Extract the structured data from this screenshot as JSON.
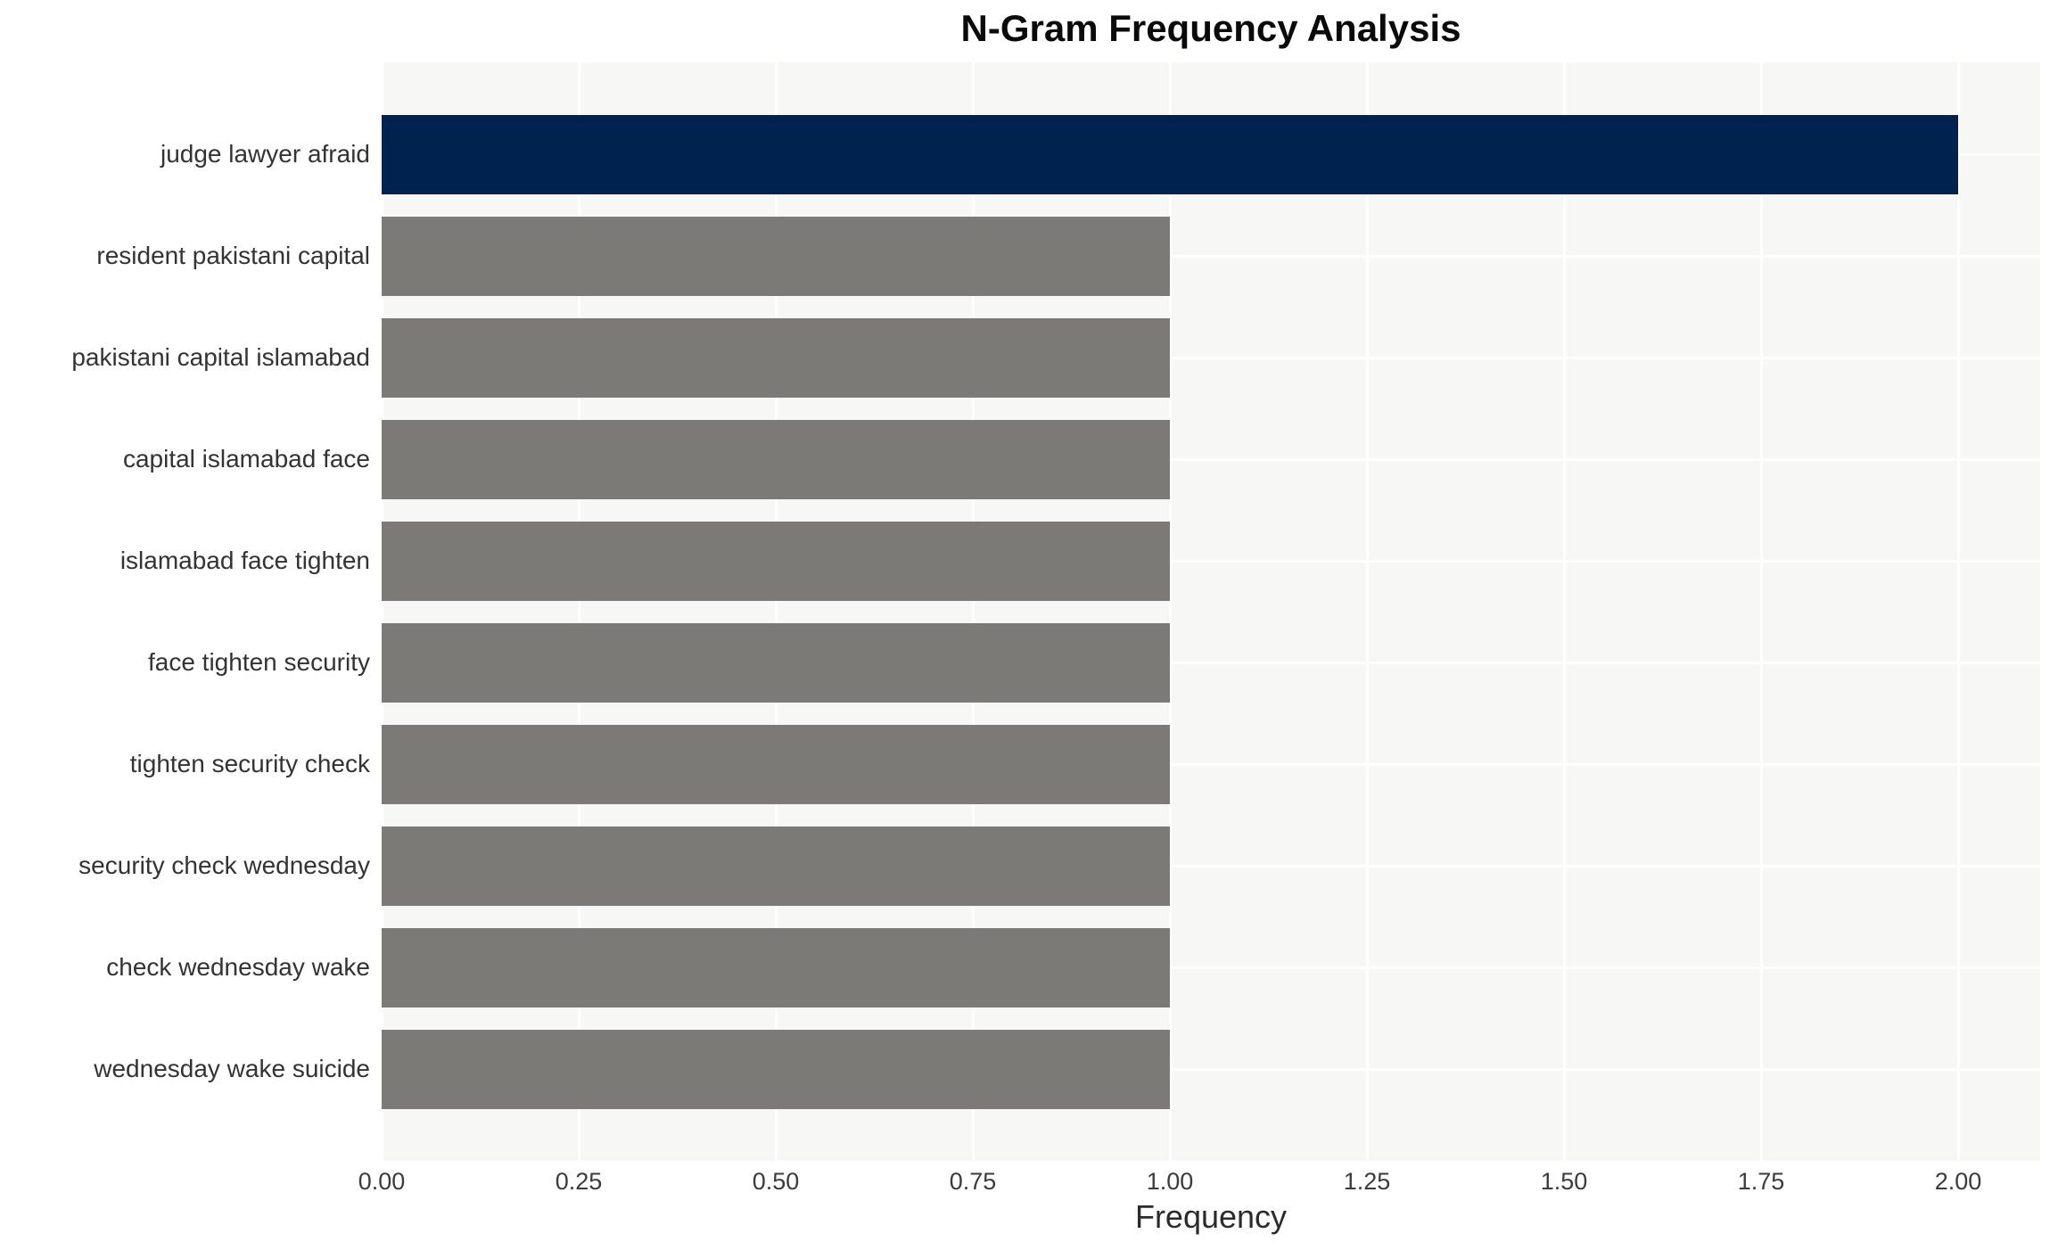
{
  "chart_data": {
    "type": "bar",
    "orientation": "horizontal",
    "title": "N-Gram Frequency Analysis",
    "xlabel": "Frequency",
    "ylabel": "",
    "categories": [
      "judge lawyer afraid",
      "resident pakistani capital",
      "pakistani capital islamabad",
      "capital islamabad face",
      "islamabad face tighten",
      "face tighten security",
      "tighten security check",
      "security check wednesday",
      "check wednesday wake",
      "wednesday wake suicide"
    ],
    "values": [
      2,
      1,
      1,
      1,
      1,
      1,
      1,
      1,
      1,
      1
    ],
    "bar_colors": [
      "#00224e",
      "#7b7a76",
      "#7b7a76",
      "#7b7a76",
      "#7b7a76",
      "#7b7a76",
      "#7b7a76",
      "#7b7a76",
      "#7b7a76",
      "#7b7a76"
    ],
    "xlim": [
      0,
      2.104
    ],
    "xticks": [
      0,
      0.25,
      0.5,
      0.75,
      1.0,
      1.25,
      1.5,
      1.75,
      2.0
    ],
    "xtick_labels": [
      "0.00",
      "0.25",
      "0.50",
      "0.75",
      "1.00",
      "1.25",
      "1.50",
      "1.75",
      "2.00"
    ],
    "grid": true,
    "legend_visible": false,
    "colors": {
      "highlight_bar": "#00224e",
      "default_bar": "#7b7a76",
      "plot_background": "#f7f7f6",
      "gridline": "#ffffff",
      "figure_background": "#ffffff",
      "title_text": "#0a0a0a",
      "label_text": "#333333"
    }
  }
}
